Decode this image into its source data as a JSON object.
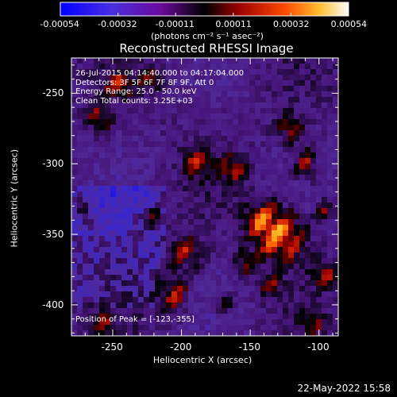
{
  "colorbar": {
    "ticks": [
      "-0.00054",
      "-0.00032",
      "-0.00011",
      "0.00011",
      "0.00032",
      "0.00054"
    ],
    "units": "(photons cm⁻² s⁻¹ asec⁻²)",
    "colors": [
      "#0000ff",
      "#5a2bd4",
      "#6a0090",
      "#000000",
      "#b00000",
      "#ff5a00",
      "#ffdc3c",
      "#ffffff"
    ]
  },
  "plot": {
    "title": "Reconstructed RHESSI Image",
    "xlabel": "Heliocentric X (arcsec)",
    "ylabel": "Heliocentric Y (arcsec)",
    "xticks": [
      "-250",
      "-200",
      "-150",
      "-100"
    ],
    "yticks": [
      "-250",
      "-300",
      "-350",
      "-400"
    ],
    "xlim": [
      -280,
      -86
    ],
    "ylim": [
      -422,
      -225
    ]
  },
  "info": {
    "line1": "26-Jul-2015 04:14:40.000 to 04:17:04.000",
    "line2": "Detectors: 3F 5F 6F 7F 8F 9F, Att 0",
    "line3": "Energy Range: 25.0 - 50.0 keV",
    "line4": "Clean    Total counts: 3.25E+03"
  },
  "peak": {
    "text": "Position of Peak = [-123,-355]",
    "x": -123,
    "y": -355
  },
  "timestamp": "22-May-2022 15:58"
}
